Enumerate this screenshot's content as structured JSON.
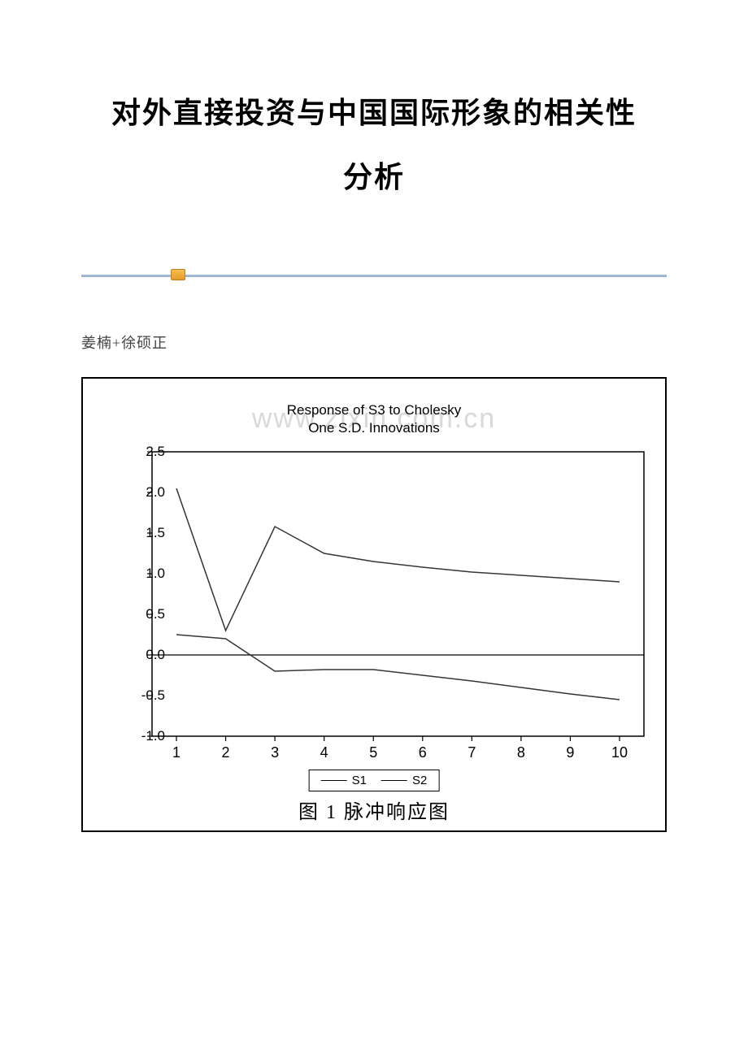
{
  "title": {
    "line1": "对外直接投资与中国国际形象的相关性",
    "line2": "分析"
  },
  "author": "姜楠+徐硕正",
  "watermark": "www.zixin.com.cn",
  "chart": {
    "type": "line",
    "header_line1": "Response of S3 to Cholesky",
    "header_line2": "One S.D. Innovations",
    "caption": "图 1 脉冲响应图",
    "plot": {
      "x_min": 1,
      "x_max": 10,
      "y_min": -1.0,
      "y_max": 2.5,
      "y_ticks": [
        2.5,
        2.0,
        1.5,
        1.0,
        0.5,
        0.0,
        -0.5,
        -1.0
      ],
      "x_ticks": [
        1,
        2,
        3,
        4,
        5,
        6,
        7,
        8,
        9,
        10
      ],
      "zero_line_y": 0.0,
      "axis_color": "#000000",
      "tick_fontsize": 17,
      "line_width": 1.5,
      "series": [
        {
          "name": "S1",
          "color": "#353535",
          "points": [
            {
              "x": 1,
              "y": 2.05
            },
            {
              "x": 2,
              "y": 0.3
            },
            {
              "x": 3,
              "y": 1.58
            },
            {
              "x": 4,
              "y": 1.25
            },
            {
              "x": 5,
              "y": 1.15
            },
            {
              "x": 6,
              "y": 1.08
            },
            {
              "x": 7,
              "y": 1.02
            },
            {
              "x": 8,
              "y": 0.98
            },
            {
              "x": 9,
              "y": 0.94
            },
            {
              "x": 10,
              "y": 0.9
            }
          ]
        },
        {
          "name": "S2",
          "color": "#353535",
          "points": [
            {
              "x": 1,
              "y": 0.25
            },
            {
              "x": 2,
              "y": 0.2
            },
            {
              "x": 3,
              "y": -0.2
            },
            {
              "x": 4,
              "y": -0.18
            },
            {
              "x": 5,
              "y": -0.18
            },
            {
              "x": 6,
              "y": -0.25
            },
            {
              "x": 7,
              "y": -0.32
            },
            {
              "x": 8,
              "y": -0.4
            },
            {
              "x": 9,
              "y": -0.48
            },
            {
              "x": 10,
              "y": -0.55
            }
          ]
        }
      ]
    },
    "legend": {
      "items": [
        "S1",
        "S2"
      ]
    }
  }
}
